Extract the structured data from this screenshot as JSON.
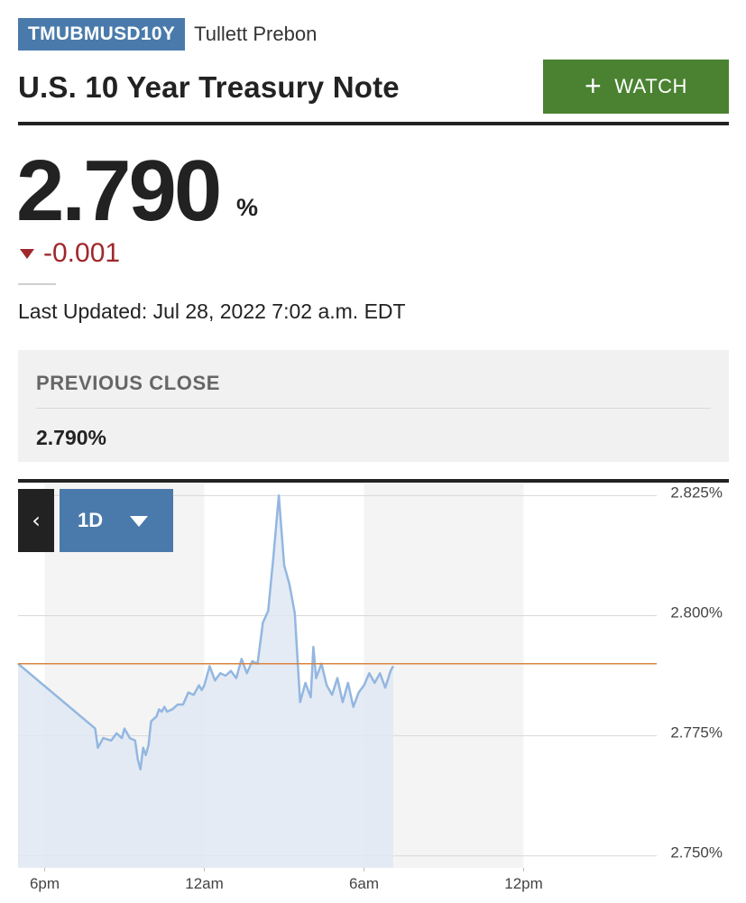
{
  "header": {
    "ticker": "TMUBMUSD10Y",
    "source": "Tullett Prebon",
    "title": "U.S. 10 Year Treasury Note",
    "watch_label": "WATCH"
  },
  "quote": {
    "price": "2.790",
    "unit": "%",
    "change": "-0.001",
    "last_updated": "Last Updated: Jul 28, 2022 7:02 a.m. EDT"
  },
  "previous_close": {
    "label": "PREVIOUS CLOSE",
    "value": "2.790%"
  },
  "chart_controls": {
    "back_label": "‹",
    "range": "1D"
  },
  "colors": {
    "badge": "#4a7aab",
    "watch": "#4a8232",
    "change_down": "#a0272c",
    "series_line": "#93b7e0",
    "series_fill": "#dfe8f3",
    "previous_close_line": "#d9843f"
  },
  "chart_data": {
    "type": "area",
    "title": "",
    "xlabel": "",
    "ylabel": "",
    "x_ticks": [
      {
        "t": 0,
        "label": "6pm"
      },
      {
        "t": 6,
        "label": "12am"
      },
      {
        "t": 12,
        "label": "6am"
      },
      {
        "t": 18,
        "label": "12pm"
      }
    ],
    "y_ticks": [
      {
        "v": 2.825,
        "label": "2.825%"
      },
      {
        "v": 2.8,
        "label": "2.800%"
      },
      {
        "v": 2.775,
        "label": "2.775%"
      },
      {
        "v": 2.75,
        "label": "2.750%"
      }
    ],
    "ylim": [
      2.7475,
      2.8275
    ],
    "xlim": [
      -1,
      23
    ],
    "reference_line": {
      "name": "Previous close",
      "value": 2.79
    },
    "shaded_ranges": [
      [
        0,
        6
      ],
      [
        12,
        18
      ]
    ],
    "series": [
      {
        "x": [
          -1,
          1.9,
          2.0,
          2.2,
          2.5,
          2.7,
          2.9,
          3.0,
          3.2,
          3.4,
          3.5,
          3.6,
          3.7,
          3.8,
          3.9,
          4.0,
          4.2,
          4.3,
          4.4,
          4.5,
          4.6,
          4.8,
          5.0,
          5.2,
          5.4,
          5.6,
          5.8,
          5.9,
          6.0,
          6.2,
          6.4,
          6.6,
          6.8,
          7.0,
          7.2,
          7.4,
          7.6,
          7.8,
          8.0,
          8.2,
          8.4,
          8.6,
          8.8,
          9.0,
          9.2,
          9.4,
          9.6,
          9.8,
          10.0,
          10.1,
          10.2,
          10.4,
          10.6,
          10.8,
          11.0,
          11.2,
          11.4,
          11.6,
          11.8,
          12.0,
          12.2,
          12.4,
          12.6,
          12.8,
          13.0,
          13.1
        ],
        "values": [
          2.79,
          2.7765,
          2.7725,
          2.7745,
          2.774,
          2.7755,
          2.7745,
          2.7765,
          2.7745,
          2.774,
          2.77,
          2.768,
          2.7725,
          2.771,
          2.773,
          2.778,
          2.779,
          2.7805,
          2.78,
          2.781,
          2.78,
          2.7805,
          2.7815,
          2.7815,
          2.784,
          2.7835,
          2.7855,
          2.7845,
          2.7855,
          2.7895,
          2.7865,
          2.788,
          2.7875,
          2.7885,
          2.787,
          2.791,
          2.788,
          2.7905,
          2.79,
          2.7985,
          2.801,
          2.8125,
          2.825,
          2.8105,
          2.8065,
          2.8005,
          2.782,
          2.786,
          2.783,
          2.7935,
          2.787,
          2.79,
          2.7855,
          2.7835,
          2.787,
          2.782,
          2.786,
          2.781,
          2.784,
          2.7855,
          2.788,
          2.786,
          2.788,
          2.785,
          2.7885,
          2.7895
        ]
      }
    ]
  }
}
